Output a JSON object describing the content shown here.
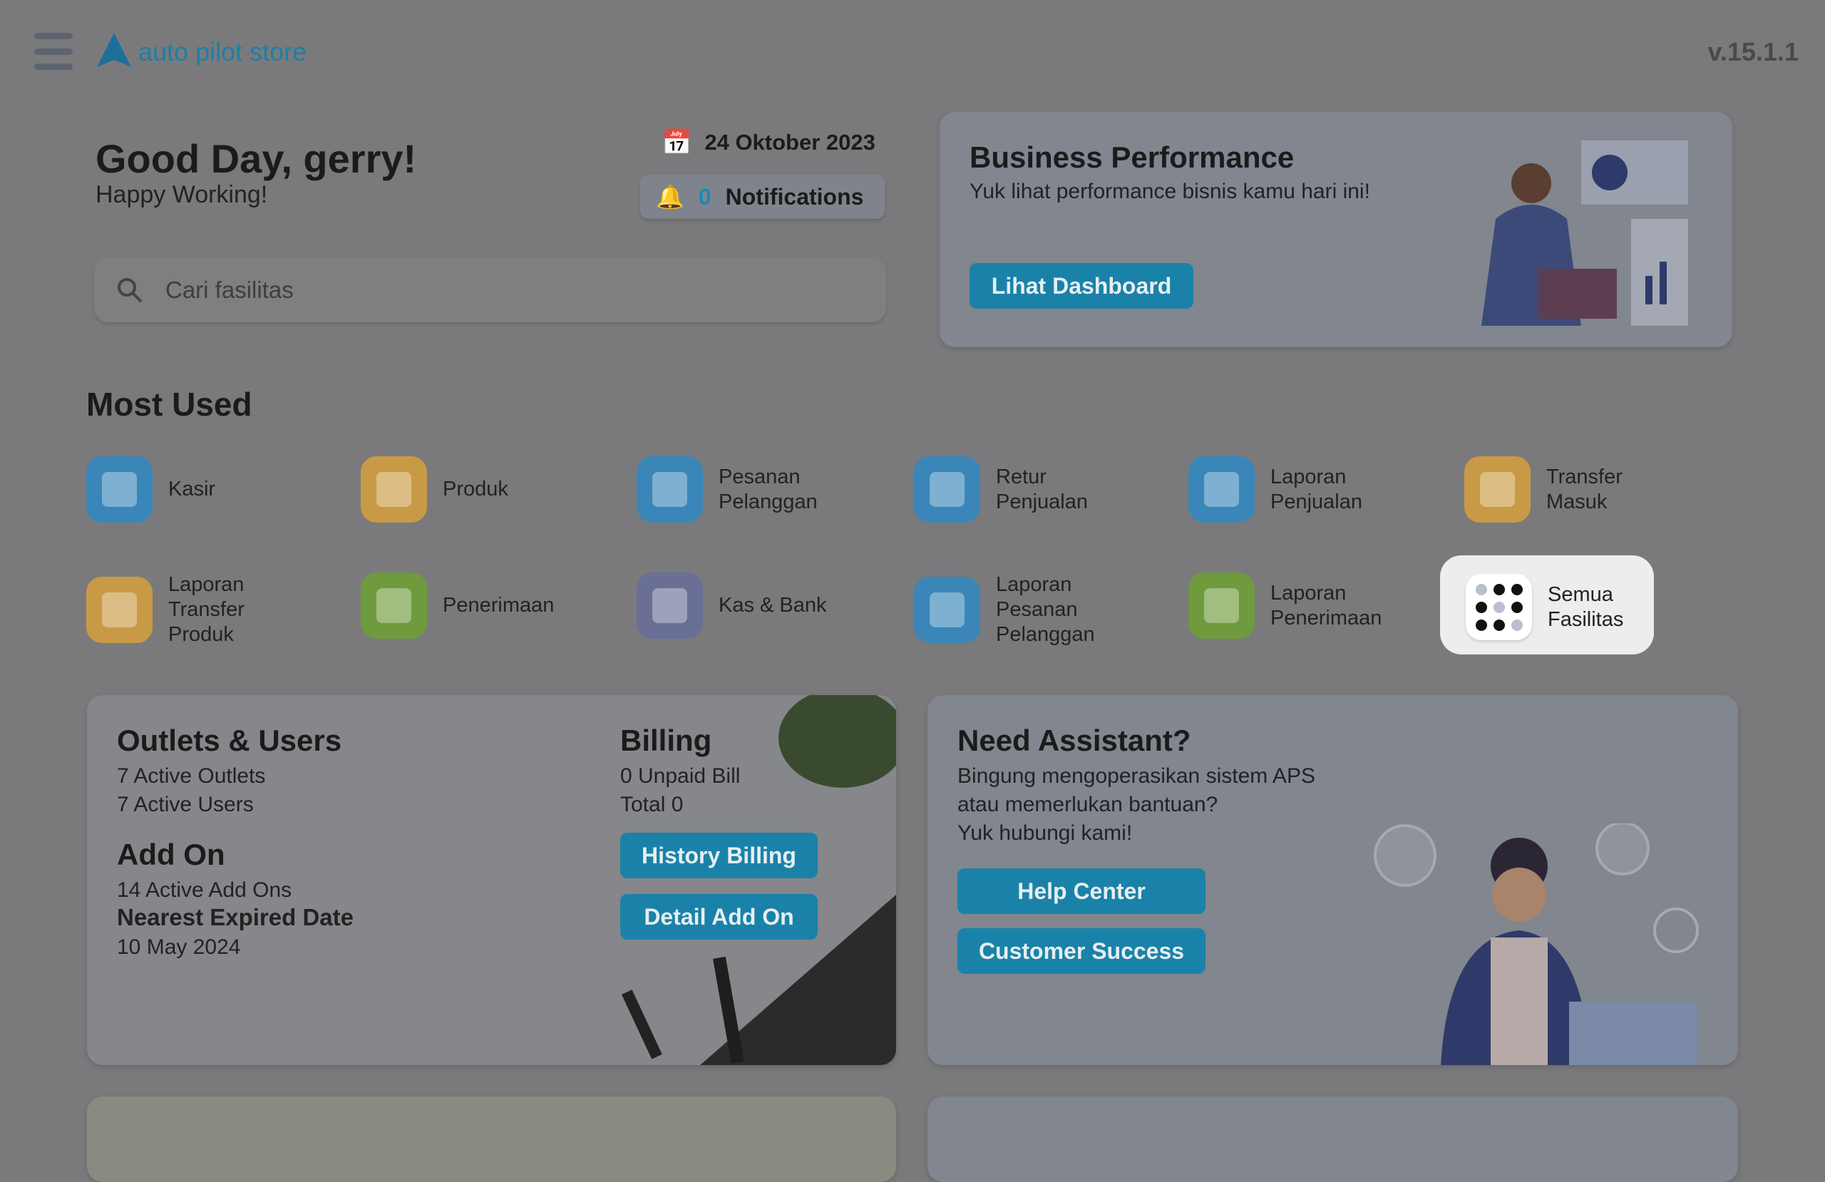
{
  "header": {
    "logo": "auto pilot store",
    "version": "v.15.1.1"
  },
  "greeting": {
    "title": "Good Day, gerry!",
    "subtitle": "Happy Working!",
    "date": "24 Oktober 2023",
    "notif_count": "0",
    "notif_label": "Notifications"
  },
  "search": {
    "placeholder": "Cari fasilitas"
  },
  "business": {
    "title": "Business Performance",
    "subtitle": "Yuk lihat performance bisnis kamu hari ini!",
    "button": "Lihat Dashboard"
  },
  "most_used": {
    "title": "Most Used",
    "items": [
      {
        "label": "Kasir",
        "color": "#3a86b8"
      },
      {
        "label": "Produk",
        "color": "#c99a45"
      },
      {
        "label": "Pesanan Pelanggan",
        "color": "#3a86b8"
      },
      {
        "label": "Retur Penjualan",
        "color": "#3a86b8"
      },
      {
        "label": "Laporan Penjualan",
        "color": "#3a86b8"
      },
      {
        "label": "Transfer Masuk",
        "color": "#c99a45"
      },
      {
        "label": "Laporan Transfer Produk",
        "color": "#c99a45"
      },
      {
        "label": "Penerimaan",
        "color": "#6f9a3d"
      },
      {
        "label": "Kas & Bank",
        "color": "#6a6f96"
      },
      {
        "label": "Laporan Pesanan Pelanggan",
        "color": "#3a86b8"
      },
      {
        "label": "Laporan Penerimaan",
        "color": "#6f9a3d"
      },
      {
        "label": "Semua Fasilitas",
        "color": "#ffffff"
      }
    ]
  },
  "outlets": {
    "title": "Outlets & Users",
    "outlets": "7 Active Outlets",
    "users": "7 Active Users",
    "addon_title": "Add On",
    "addons": "14 Active Add Ons",
    "nearest_label": "Nearest Expired Date",
    "nearest_date": "10 May 2024"
  },
  "billing": {
    "title": "Billing",
    "unpaid": "0 Unpaid Bill",
    "total": "Total 0",
    "history_button": "History Billing",
    "detail_button": "Detail Add On"
  },
  "assistant": {
    "title": "Need Assistant?",
    "line1": "Bingung mengoperasikan sistem APS",
    "line2": "atau memerlukan bantuan?",
    "line3": "Yuk hubungi kami!",
    "help_button": "Help Center",
    "cs_button": "Customer Success"
  }
}
